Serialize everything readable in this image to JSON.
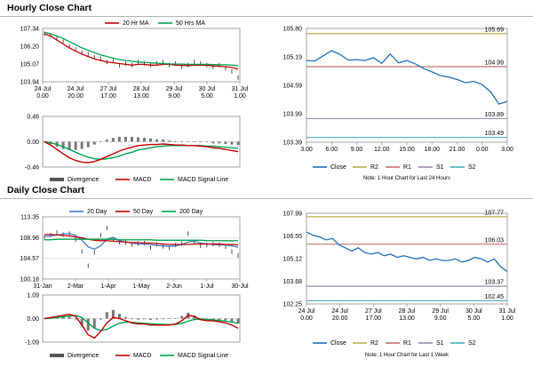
{
  "sections": {
    "hourly_title": "Hourly Close Chart",
    "daily_title": "Daily Close Chart"
  },
  "colors": {
    "close": "#1f6fb5",
    "ma_red": "#c00000",
    "ma_green": "#00a050",
    "ma_blue": "#3d7cc9",
    "r2": "#b5b04a",
    "r1": "#c07070",
    "s1": "#9c8ab0",
    "s2": "#4aa8c4",
    "divergence": "#555555",
    "signal": "#00a050"
  },
  "chart_data": [
    {
      "id": "hourly_price",
      "type": "line",
      "title": "Hourly Close Chart",
      "ylim": [
        103.94,
        107.34
      ],
      "y_ticks": [
        "107.34",
        "106.20",
        "105.07",
        "103.94"
      ],
      "x_ticks": [
        [
          "24 Jul",
          "0.00"
        ],
        [
          "24 Jul",
          "20.00"
        ],
        [
          "27 Jul",
          "17.00"
        ],
        [
          "28 Jul",
          "13.00"
        ],
        [
          "29 Jul",
          "9.00"
        ],
        [
          "30 Jul",
          "5.00"
        ],
        [
          "31 Jul",
          "1.00"
        ]
      ],
      "legend": [
        "20 Hr MA",
        "50 Hrs MA"
      ],
      "series": [
        {
          "name": "Close",
          "values": [
            107.0,
            106.9,
            106.7,
            106.5,
            106.2,
            106.0,
            105.8,
            105.7,
            105.5,
            105.4,
            105.2,
            105.3,
            105.0,
            105.1,
            105.0,
            105.2,
            105.1,
            105.0,
            105.1,
            105.2,
            105.0,
            105.1,
            104.9,
            105.0,
            105.2,
            105.1,
            105.0,
            104.9,
            105.0,
            104.8,
            104.6,
            104.2
          ]
        },
        {
          "name": "20 Hr MA",
          "values": [
            107.0,
            106.85,
            106.6,
            106.35,
            106.1,
            105.9,
            105.7,
            105.55,
            105.4,
            105.3,
            105.2,
            105.15,
            105.1,
            105.05,
            105.0,
            105.05,
            105.05,
            105.0,
            105.0,
            105.05,
            105.05,
            105.0,
            104.98,
            104.97,
            105.0,
            105.0,
            105.0,
            104.95,
            104.93,
            104.9,
            104.85,
            104.75
          ]
        },
        {
          "name": "50 Hrs MA",
          "values": [
            107.1,
            107.0,
            106.85,
            106.7,
            106.5,
            106.3,
            106.1,
            105.95,
            105.8,
            105.65,
            105.55,
            105.45,
            105.35,
            105.3,
            105.25,
            105.2,
            105.18,
            105.15,
            105.12,
            105.1,
            105.08,
            105.07,
            105.06,
            105.05,
            105.05,
            105.05,
            105.05,
            105.04,
            105.03,
            105.02,
            105.0,
            104.97
          ]
        }
      ]
    },
    {
      "id": "hourly_macd",
      "type": "line",
      "ylim": [
        -0.46,
        0.46
      ],
      "y_ticks": [
        "0.46",
        "0.00",
        "-0.46"
      ],
      "legend": [
        "Divergence",
        "MACD",
        "MACD Signal Line"
      ],
      "series": [
        {
          "name": "MACD",
          "values": [
            0.0,
            -0.06,
            -0.14,
            -0.22,
            -0.29,
            -0.34,
            -0.37,
            -0.38,
            -0.36,
            -0.32,
            -0.27,
            -0.22,
            -0.17,
            -0.13,
            -0.1,
            -0.07,
            -0.06,
            -0.05,
            -0.05,
            -0.04,
            -0.05,
            -0.06,
            -0.06,
            -0.07,
            -0.07,
            -0.08,
            -0.09,
            -0.11,
            -0.12,
            -0.14,
            -0.16,
            -0.18
          ]
        },
        {
          "name": "MACD Signal Line",
          "values": [
            0.0,
            -0.02,
            -0.05,
            -0.09,
            -0.14,
            -0.19,
            -0.24,
            -0.28,
            -0.31,
            -0.32,
            -0.31,
            -0.29,
            -0.26,
            -0.22,
            -0.19,
            -0.15,
            -0.13,
            -0.11,
            -0.09,
            -0.08,
            -0.07,
            -0.07,
            -0.07,
            -0.07,
            -0.07,
            -0.07,
            -0.08,
            -0.08,
            -0.09,
            -0.1,
            -0.11,
            -0.12
          ]
        },
        {
          "name": "Divergence",
          "values": [
            0.0,
            -0.04,
            -0.09,
            -0.13,
            -0.15,
            -0.15,
            -0.13,
            -0.1,
            -0.05,
            0.0,
            0.04,
            0.07,
            0.09,
            0.09,
            0.09,
            0.08,
            0.07,
            0.06,
            0.04,
            0.04,
            0.02,
            0.01,
            0.01,
            0.0,
            0.0,
            -0.01,
            -0.01,
            -0.03,
            -0.03,
            -0.04,
            -0.05,
            -0.06
          ]
        }
      ]
    },
    {
      "id": "hourly_24h",
      "type": "line",
      "ylim": [
        103.39,
        105.8
      ],
      "y_ticks": [
        "105.80",
        "105.19",
        "104.59",
        "103.99",
        "103.39"
      ],
      "x_ticks": [
        "3.00",
        "6.00",
        "9.00",
        "12.00",
        "15.00",
        "18.00",
        "21.00",
        "0.00",
        "3.00"
      ],
      "levels": [
        {
          "name": "R2",
          "value": 105.69,
          "label": "105.69"
        },
        {
          "name": "R1",
          "value": 104.99,
          "label": "104.99"
        },
        {
          "name": "S1",
          "value": 103.89,
          "label": "103.89"
        },
        {
          "name": "S2",
          "value": 103.49,
          "label": "103.49"
        }
      ],
      "legend": [
        "Close",
        "R2",
        "R1",
        "S1",
        "S2"
      ],
      "note": "Note: 1 Hour Chart for Last 24 Hours",
      "series": [
        {
          "name": "Close",
          "values": [
            105.12,
            105.11,
            105.22,
            105.33,
            105.25,
            105.13,
            105.14,
            105.12,
            105.18,
            105.06,
            105.26,
            105.07,
            105.12,
            105.05,
            104.95,
            104.88,
            104.8,
            104.77,
            104.72,
            104.65,
            104.68,
            104.61,
            104.46,
            104.2,
            104.25
          ]
        }
      ]
    },
    {
      "id": "daily_price",
      "type": "line",
      "title": "Daily Close Chart",
      "ylim": [
        100.18,
        113.35
      ],
      "y_ticks": [
        "113.35",
        "108.96",
        "104.57",
        "100.18"
      ],
      "x_ticks": [
        "31-Jan",
        "2-Mar",
        "1-Apr",
        "1-May",
        "2-Jun",
        "1-Jul",
        "30-Jul"
      ],
      "legend": [
        "20 Day",
        "50 Day",
        "200 Day"
      ],
      "series": [
        {
          "name": "Close",
          "values": [
            109.0,
            109.5,
            110.0,
            109.6,
            109.8,
            108.5,
            106.0,
            103.0,
            105.8,
            109.5,
            111.0,
            108.5,
            108.0,
            107.9,
            107.5,
            107.7,
            107.8,
            106.8,
            107.5,
            107.1,
            106.8,
            107.4,
            107.7,
            109.8,
            108.0,
            107.2,
            107.4,
            107.6,
            107.4,
            107.0,
            106.0,
            105.2
          ]
        },
        {
          "name": "20 Day",
          "values": [
            109.2,
            109.3,
            109.5,
            109.7,
            109.8,
            109.4,
            108.4,
            107.0,
            106.5,
            107.2,
            108.6,
            109.0,
            108.3,
            108.0,
            107.8,
            107.6,
            107.6,
            107.5,
            107.3,
            107.2,
            107.1,
            107.2,
            107.5,
            108.0,
            108.2,
            107.8,
            107.6,
            107.5,
            107.4,
            107.4,
            107.2,
            106.9
          ]
        },
        {
          "name": "50 Day",
          "values": [
            109.6,
            109.6,
            109.5,
            109.4,
            109.3,
            109.1,
            108.9,
            108.6,
            108.4,
            108.3,
            108.3,
            108.2,
            108.1,
            108.0,
            107.9,
            107.9,
            107.8,
            107.8,
            107.7,
            107.6,
            107.5,
            107.5,
            107.5,
            107.5,
            107.6,
            107.6,
            107.6,
            107.6,
            107.6,
            107.5,
            107.5,
            107.4
          ]
        },
        {
          "name": "200 Day",
          "values": [
            108.5,
            108.5,
            108.6,
            108.6,
            108.6,
            108.6,
            108.6,
            108.6,
            108.6,
            108.6,
            108.6,
            108.6,
            108.5,
            108.5,
            108.5,
            108.5,
            108.5,
            108.5,
            108.4,
            108.4,
            108.4,
            108.4,
            108.4,
            108.4,
            108.4,
            108.4,
            108.3,
            108.3,
            108.3,
            108.3,
            108.3,
            108.3
          ]
        }
      ]
    },
    {
      "id": "daily_macd",
      "type": "line",
      "ylim": [
        -1.09,
        1.09
      ],
      "y_ticks": [
        "1.09",
        "0.00",
        "-1.09"
      ],
      "legend": [
        "Divergence",
        "MACD",
        "MACD Signal Line"
      ],
      "series": [
        {
          "name": "MACD",
          "values": [
            0.0,
            0.05,
            0.1,
            0.15,
            0.2,
            0.1,
            -0.3,
            -0.75,
            -0.9,
            -0.6,
            -0.2,
            0.05,
            0.0,
            -0.1,
            -0.2,
            -0.25,
            -0.25,
            -0.3,
            -0.3,
            -0.3,
            -0.3,
            -0.25,
            -0.1,
            0.15,
            0.1,
            -0.05,
            -0.1,
            -0.1,
            -0.15,
            -0.2,
            -0.3,
            -0.45
          ]
        },
        {
          "name": "MACD Signal Line",
          "values": [
            0.0,
            0.02,
            0.05,
            0.08,
            0.12,
            0.14,
            0.05,
            -0.2,
            -0.45,
            -0.55,
            -0.5,
            -0.35,
            -0.22,
            -0.17,
            -0.17,
            -0.2,
            -0.22,
            -0.24,
            -0.26,
            -0.27,
            -0.28,
            -0.27,
            -0.22,
            -0.12,
            -0.04,
            -0.02,
            -0.04,
            -0.06,
            -0.09,
            -0.12,
            -0.16,
            -0.22
          ]
        },
        {
          "name": "Divergence",
          "values": [
            0.0,
            0.03,
            0.05,
            0.07,
            0.08,
            -0.04,
            -0.35,
            -0.55,
            -0.45,
            -0.05,
            0.3,
            0.4,
            0.22,
            0.07,
            -0.03,
            -0.05,
            -0.03,
            -0.06,
            -0.04,
            -0.03,
            -0.02,
            0.02,
            0.12,
            0.27,
            0.14,
            -0.03,
            -0.06,
            -0.04,
            -0.06,
            -0.08,
            -0.14,
            -0.23
          ]
        }
      ]
    },
    {
      "id": "daily_week",
      "type": "line",
      "ylim": [
        102.25,
        107.99
      ],
      "y_ticks": [
        "107.99",
        "106.55",
        "105.12",
        "103.68",
        "102.25"
      ],
      "x_ticks": [
        [
          "24 Jul",
          "0.00"
        ],
        [
          "24 Jul",
          "20.00"
        ],
        [
          "27 Jul",
          "17.00"
        ],
        [
          "28 Jul",
          "13.00"
        ],
        [
          "29 Jul",
          "9.00"
        ],
        [
          "30 Jul",
          "5.00"
        ],
        [
          "31 Jul",
          "1.00"
        ]
      ],
      "levels": [
        {
          "name": "R2",
          "value": 107.77,
          "label": "107.77"
        },
        {
          "name": "R1",
          "value": 106.03,
          "label": "106.03"
        },
        {
          "name": "S1",
          "value": 103.37,
          "label": "103.37"
        },
        {
          "name": "S2",
          "value": 102.45,
          "label": "102.45"
        }
      ],
      "legend": [
        "Close",
        "R2",
        "R1",
        "S1",
        "S2"
      ],
      "note": "Note: 1 Hour Chart for Last 1 Week",
      "series": [
        {
          "name": "Close",
          "values": [
            106.8,
            106.6,
            106.5,
            106.3,
            106.4,
            106.0,
            105.8,
            105.6,
            105.8,
            105.5,
            105.4,
            105.5,
            105.3,
            105.4,
            105.2,
            105.3,
            105.2,
            105.1,
            105.2,
            105.0,
            105.1,
            105.0,
            105.0,
            105.1,
            104.9,
            105.0,
            105.2,
            105.1,
            104.9,
            105.1,
            104.6,
            104.3
          ]
        }
      ]
    }
  ]
}
